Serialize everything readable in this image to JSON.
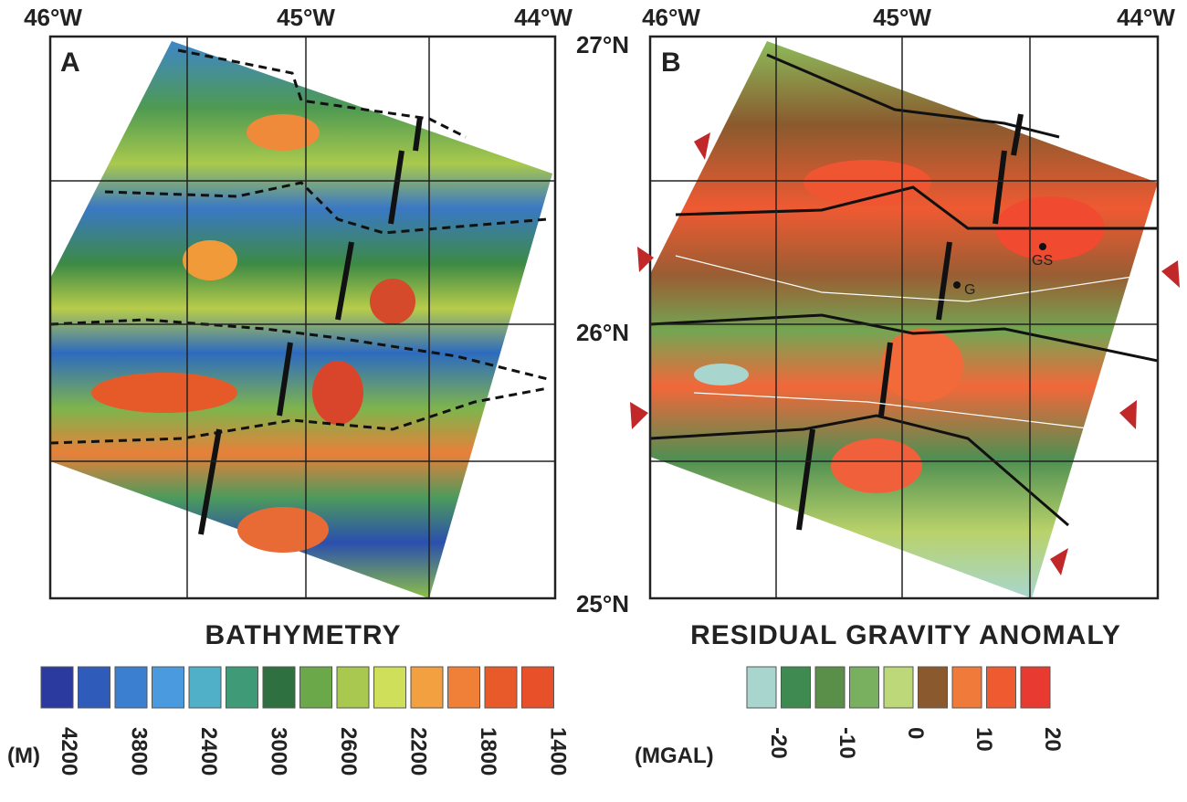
{
  "longitude_labels": [
    "46°W",
    "45°W",
    "44°W"
  ],
  "latitude_labels": [
    "27°N",
    "26°N",
    "25°N"
  ],
  "panels": [
    {
      "label": "A",
      "title": "BATHYMETRY",
      "legend_unit": "(M)",
      "legend_labels": [
        "4200",
        "3800",
        "2400",
        "3000",
        "2600",
        "2200",
        "1800",
        "1400"
      ]
    },
    {
      "label": "B",
      "title": "RESIDUAL GRAVITY ANOMALY",
      "legend_unit": "(MGAL)",
      "legend_labels": [
        "-20",
        "-10",
        "0",
        "10",
        "20"
      ],
      "site_labels": [
        "G",
        "GS"
      ]
    }
  ]
}
